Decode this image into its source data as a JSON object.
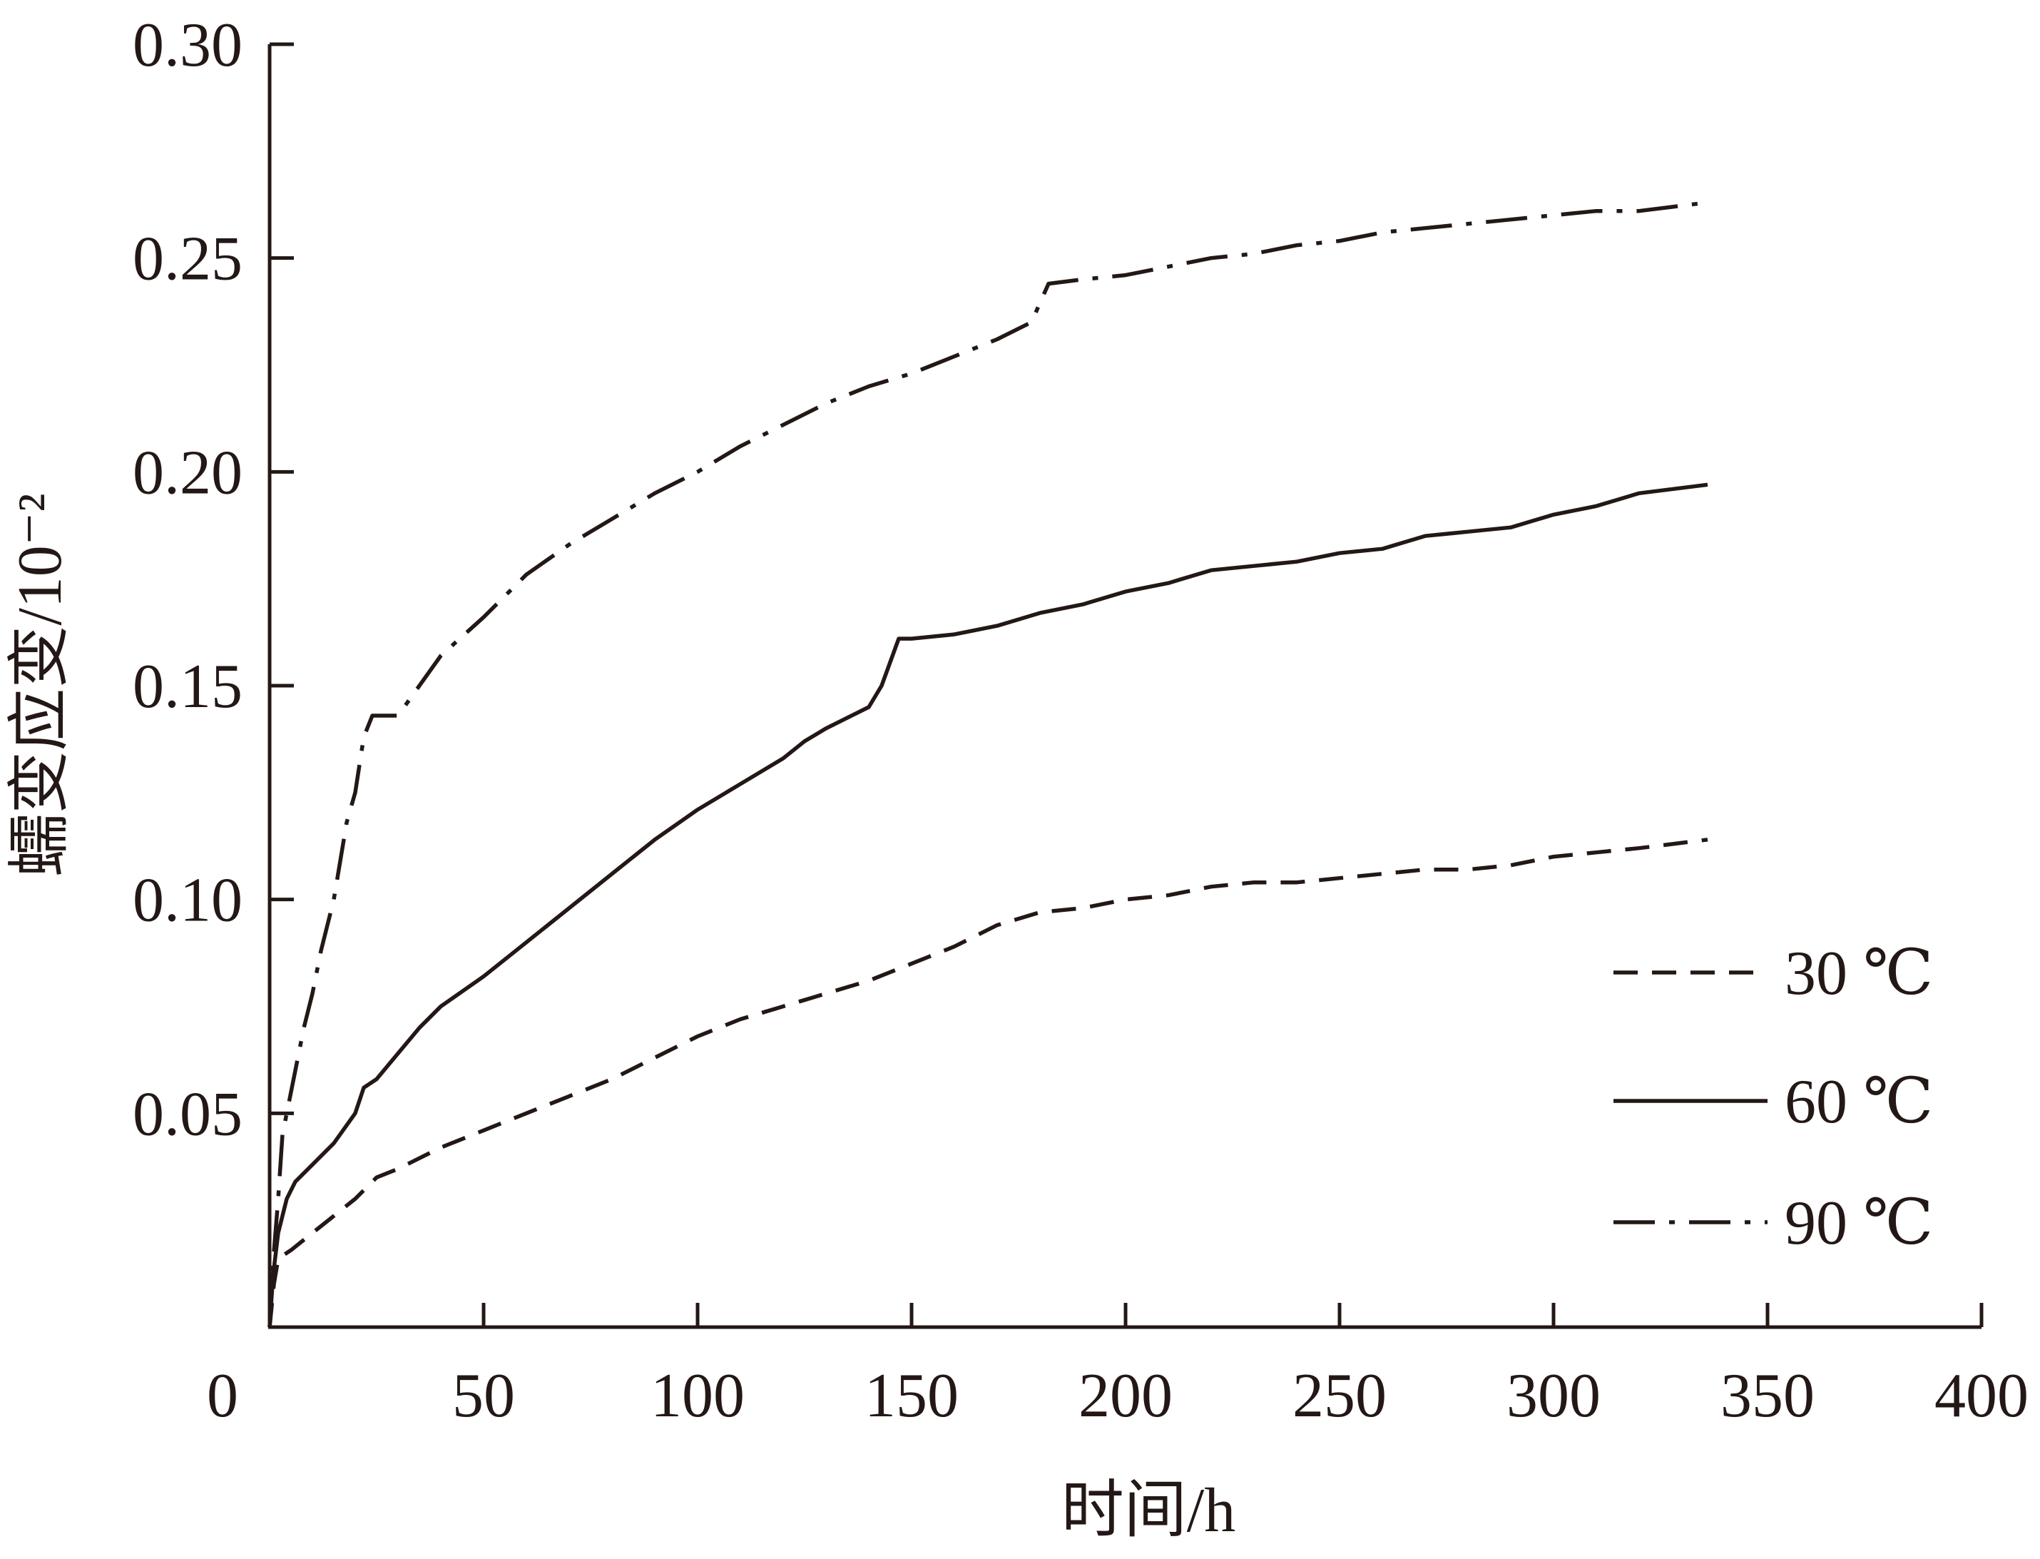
{
  "chart_data": {
    "type": "line",
    "title": "",
    "xlabel": "时间/h",
    "ylabel": "蠕变应变/10⁻²",
    "xlim": [
      0,
      400
    ],
    "ylim": [
      0,
      0.3
    ],
    "x_ticks": [
      "0",
      "50",
      "100",
      "150",
      "200",
      "250",
      "300",
      "350",
      "400"
    ],
    "y_ticks": [
      "0.05",
      "0.10",
      "0.15",
      "0.20",
      "0.25",
      "0.30"
    ],
    "grid": false,
    "legend_position": "right",
    "series": [
      {
        "name": "30 ℃",
        "style": "dashed",
        "color": "#231815",
        "points": [
          [
            0,
            0
          ],
          [
            1,
            0.01
          ],
          [
            2,
            0.016
          ],
          [
            5,
            0.018
          ],
          [
            10,
            0.022
          ],
          [
            15,
            0.026
          ],
          [
            20,
            0.03
          ],
          [
            25,
            0.035
          ],
          [
            30,
            0.037
          ],
          [
            40,
            0.042
          ],
          [
            50,
            0.046
          ],
          [
            60,
            0.05
          ],
          [
            70,
            0.054
          ],
          [
            80,
            0.058
          ],
          [
            90,
            0.063
          ],
          [
            100,
            0.068
          ],
          [
            110,
            0.072
          ],
          [
            120,
            0.075
          ],
          [
            130,
            0.078
          ],
          [
            140,
            0.081
          ],
          [
            150,
            0.085
          ],
          [
            160,
            0.089
          ],
          [
            170,
            0.094
          ],
          [
            180,
            0.097
          ],
          [
            190,
            0.098
          ],
          [
            200,
            0.1
          ],
          [
            210,
            0.101
          ],
          [
            220,
            0.103
          ],
          [
            230,
            0.104
          ],
          [
            240,
            0.104
          ],
          [
            250,
            0.105
          ],
          [
            260,
            0.106
          ],
          [
            270,
            0.107
          ],
          [
            280,
            0.107
          ],
          [
            290,
            0.108
          ],
          [
            300,
            0.11
          ],
          [
            310,
            0.111
          ],
          [
            320,
            0.112
          ],
          [
            336,
            0.114
          ]
        ]
      },
      {
        "name": "60 ℃",
        "style": "solid",
        "color": "#231815",
        "points": [
          [
            0,
            0
          ],
          [
            0.8,
            0.012
          ],
          [
            2,
            0.022
          ],
          [
            4,
            0.03
          ],
          [
            6,
            0.034
          ],
          [
            10,
            0.038
          ],
          [
            15,
            0.043
          ],
          [
            20,
            0.05
          ],
          [
            22,
            0.056
          ],
          [
            25,
            0.058
          ],
          [
            30,
            0.064
          ],
          [
            35,
            0.07
          ],
          [
            40,
            0.075
          ],
          [
            50,
            0.082
          ],
          [
            60,
            0.09
          ],
          [
            70,
            0.098
          ],
          [
            80,
            0.106
          ],
          [
            90,
            0.114
          ],
          [
            100,
            0.121
          ],
          [
            110,
            0.127
          ],
          [
            120,
            0.133
          ],
          [
            125,
            0.137
          ],
          [
            130,
            0.14
          ],
          [
            140,
            0.145
          ],
          [
            143,
            0.15
          ],
          [
            147,
            0.161
          ],
          [
            150,
            0.161
          ],
          [
            160,
            0.162
          ],
          [
            170,
            0.164
          ],
          [
            180,
            0.167
          ],
          [
            190,
            0.169
          ],
          [
            200,
            0.172
          ],
          [
            210,
            0.174
          ],
          [
            220,
            0.177
          ],
          [
            230,
            0.178
          ],
          [
            240,
            0.179
          ],
          [
            250,
            0.181
          ],
          [
            260,
            0.182
          ],
          [
            270,
            0.185
          ],
          [
            280,
            0.186
          ],
          [
            290,
            0.187
          ],
          [
            300,
            0.19
          ],
          [
            310,
            0.192
          ],
          [
            320,
            0.195
          ],
          [
            336,
            0.197
          ]
        ]
      },
      {
        "name": "90 ℃",
        "style": "dashdot",
        "color": "#231815",
        "points": [
          [
            0,
            0
          ],
          [
            0.8,
            0.015
          ],
          [
            2,
            0.03
          ],
          [
            3,
            0.045
          ],
          [
            5,
            0.055
          ],
          [
            8,
            0.07
          ],
          [
            10,
            0.078
          ],
          [
            12,
            0.088
          ],
          [
            15,
            0.1
          ],
          [
            18,
            0.118
          ],
          [
            20,
            0.125
          ],
          [
            22,
            0.138
          ],
          [
            24,
            0.143
          ],
          [
            30,
            0.143
          ],
          [
            35,
            0.15
          ],
          [
            40,
            0.157
          ],
          [
            50,
            0.166
          ],
          [
            60,
            0.176
          ],
          [
            70,
            0.183
          ],
          [
            80,
            0.189
          ],
          [
            90,
            0.195
          ],
          [
            100,
            0.2
          ],
          [
            110,
            0.206
          ],
          [
            120,
            0.211
          ],
          [
            130,
            0.216
          ],
          [
            140,
            0.22
          ],
          [
            150,
            0.223
          ],
          [
            160,
            0.227
          ],
          [
            170,
            0.231
          ],
          [
            178,
            0.235
          ],
          [
            182,
            0.244
          ],
          [
            190,
            0.245
          ],
          [
            200,
            0.246
          ],
          [
            210,
            0.248
          ],
          [
            220,
            0.25
          ],
          [
            230,
            0.251
          ],
          [
            240,
            0.253
          ],
          [
            250,
            0.254
          ],
          [
            260,
            0.256
          ],
          [
            270,
            0.257
          ],
          [
            280,
            0.258
          ],
          [
            290,
            0.259
          ],
          [
            300,
            0.26
          ],
          [
            310,
            0.261
          ],
          [
            320,
            0.261
          ],
          [
            336,
            0.263
          ]
        ]
      }
    ]
  }
}
